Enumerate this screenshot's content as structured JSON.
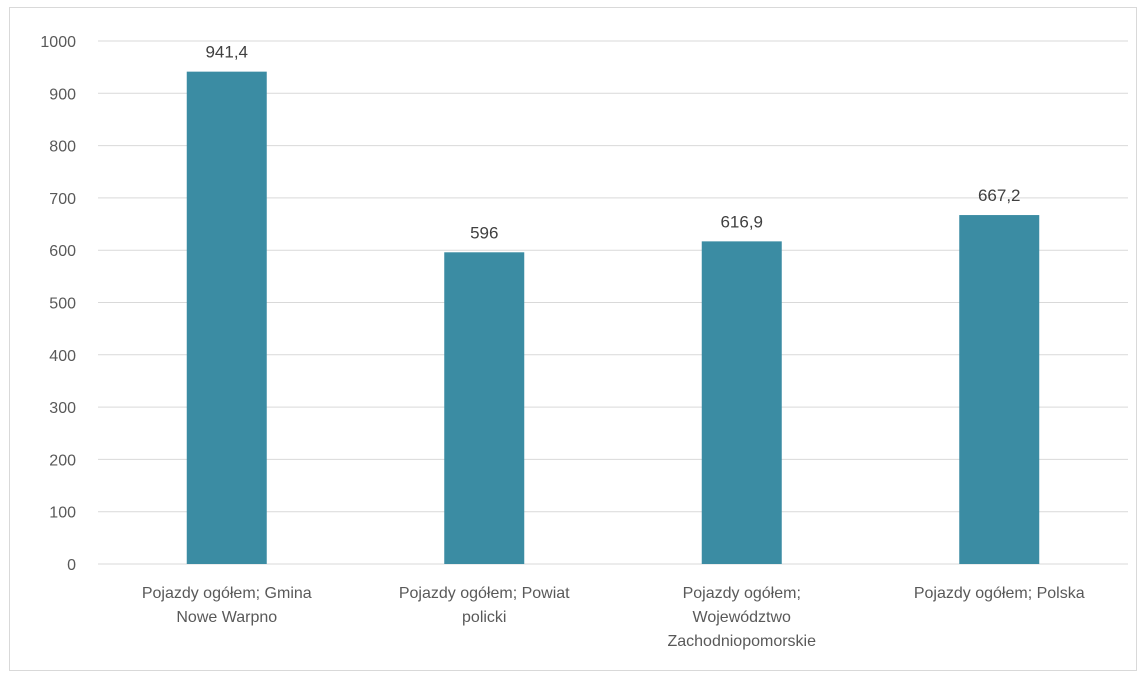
{
  "chart_data": {
    "type": "bar",
    "categories": [
      [
        "Pojazdy ogółem; Gmina",
        "Nowe Warpno"
      ],
      [
        "Pojazdy ogółem; Powiat",
        "policki"
      ],
      [
        "Pojazdy ogółem;",
        "Województwo",
        "Zachodniopomorskie"
      ],
      [
        "Pojazdy ogółem; Polska"
      ]
    ],
    "values": [
      941.4,
      596,
      616.9,
      667.2
    ],
    "value_labels": [
      "941,4",
      "596",
      "616,9",
      "667,2"
    ],
    "ylim": [
      0,
      1000
    ],
    "yticks": [
      0,
      100,
      200,
      300,
      400,
      500,
      600,
      700,
      800,
      900,
      1000
    ],
    "grid": true,
    "legend": "none",
    "title": "",
    "xlabel": "",
    "ylabel": "",
    "colors": {
      "bar": "#3B8CA3",
      "grid": "#d9d9d9"
    }
  }
}
